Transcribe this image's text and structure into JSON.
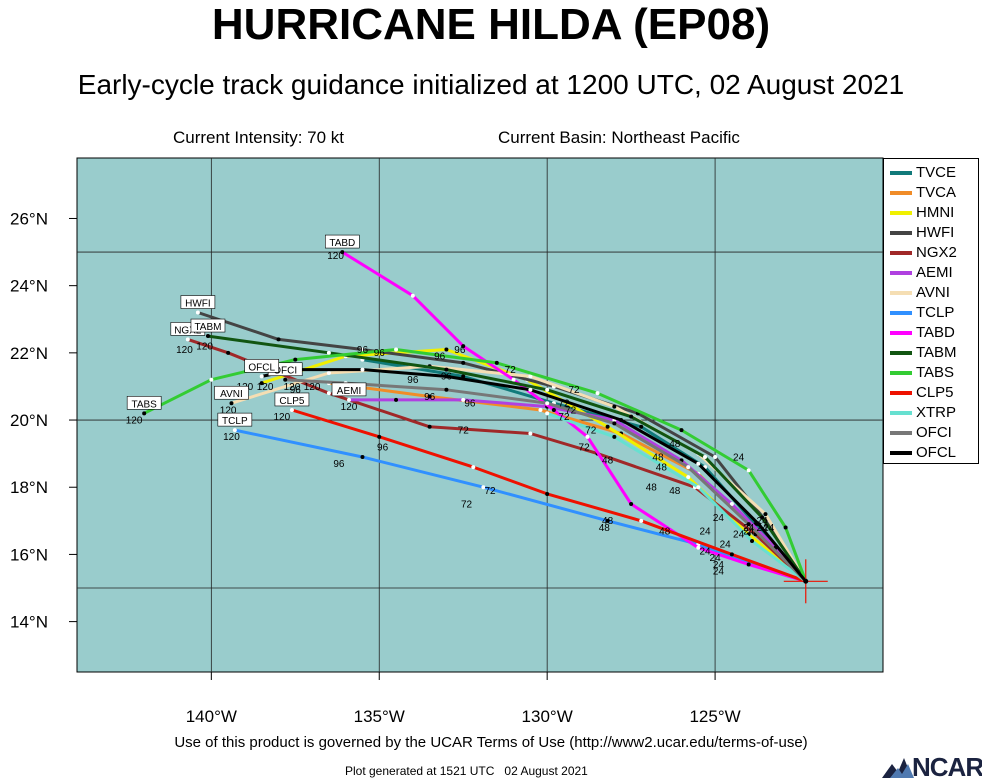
{
  "header": {
    "title": "HURRICANE HILDA (EP08)",
    "subtitle": "Early-cycle track guidance initialized at 1200 UTC, 02 August 2021",
    "intensity": "Current Intensity: 70 kt",
    "basin": "Current Basin: Northeast Pacific"
  },
  "footer": {
    "terms": "Use of this product is governed by the UCAR Terms of Use (http://www2.ucar.edu/terms-of-use)",
    "generated": "Plot generated at 1521 UTC   02 August 2021",
    "logo_text": "NCAR"
  },
  "map": {
    "ocean_color": "#99cccc",
    "grid_color": "#222222",
    "lon_range": [
      -144,
      -120
    ],
    "lat_range": [
      12.5,
      27.8
    ],
    "lon_ticks": [
      {
        "value": -140,
        "label": "140°W"
      },
      {
        "value": -135,
        "label": "135°W"
      },
      {
        "value": -130,
        "label": "130°W"
      },
      {
        "value": -125,
        "label": "125°W"
      }
    ],
    "lat_ticks": [
      {
        "value": 14,
        "label": "14°N"
      },
      {
        "value": 16,
        "label": "16°N"
      },
      {
        "value": 18,
        "label": "18°N"
      },
      {
        "value": 20,
        "label": "20°N"
      },
      {
        "value": 22,
        "label": "22°N"
      },
      {
        "value": 24,
        "label": "24°N"
      },
      {
        "value": 26,
        "label": "26°N"
      }
    ],
    "grid_lons": [
      -140,
      -135,
      -130,
      -125
    ],
    "grid_lats": [
      15,
      20,
      25
    ],
    "storm_position": {
      "lon": -122.3,
      "lat": 15.2
    }
  },
  "chart_data": {
    "type": "map",
    "series": [
      {
        "name": "TVCE",
        "color": "#117a7a",
        "points": [
          [
            -122.3,
            15.2
          ],
          [
            -123.8,
            16.9
          ],
          [
            -125.3,
            18.6
          ],
          [
            -127.2,
            19.8
          ],
          [
            -129.8,
            20.5
          ],
          [
            -132.5,
            21.3
          ],
          [
            -135.5,
            21.8
          ]
        ],
        "labels": []
      },
      {
        "name": "TVCA",
        "color": "#f08c28",
        "points": [
          [
            -122.3,
            15.2
          ],
          [
            -123.9,
            16.8
          ],
          [
            -125.5,
            18.4
          ],
          [
            -127.8,
            19.6
          ],
          [
            -130.2,
            20.3
          ],
          [
            -133.5,
            20.7
          ],
          [
            -136.5,
            21.1
          ]
        ],
        "labels": []
      },
      {
        "name": "HMNI",
        "color": "#f0f000",
        "points": [
          [
            -122.3,
            15.2
          ],
          [
            -124.0,
            16.6
          ],
          [
            -125.8,
            18.3
          ],
          [
            -128.2,
            19.8
          ],
          [
            -130.6,
            21.2
          ],
          [
            -133.0,
            22.1
          ],
          [
            -136.0,
            21.9
          ],
          [
            -138.5,
            21.1
          ]
        ],
        "labels": []
      },
      {
        "name": "HWFI",
        "color": "#444444",
        "points": [
          [
            -122.3,
            15.2
          ],
          [
            -123.5,
            17.0
          ],
          [
            -125.0,
            18.9
          ],
          [
            -127.3,
            20.2
          ],
          [
            -129.8,
            21.0
          ],
          [
            -132.5,
            21.7
          ],
          [
            -135.5,
            22.1
          ],
          [
            -138.0,
            22.4
          ],
          [
            -140.4,
            23.2
          ]
        ],
        "labels": [
          {
            "text": "HWFI",
            "boxed": true,
            "dx": 0,
            "dy": -10
          }
        ]
      },
      {
        "name": "NGX2",
        "color": "#a02828",
        "points": [
          [
            -122.3,
            15.2
          ],
          [
            -123.8,
            16.6
          ],
          [
            -125.6,
            18.0
          ],
          [
            -128.5,
            19.0
          ],
          [
            -130.5,
            19.6
          ],
          [
            -133.5,
            19.8
          ],
          [
            -136.5,
            20.8
          ],
          [
            -139.5,
            22.0
          ],
          [
            -140.7,
            22.4
          ]
        ],
        "labels": [
          {
            "text": "NGX2",
            "boxed": true,
            "dx": 0,
            "dy": -10
          }
        ]
      },
      {
        "name": "AEMI",
        "color": "#b040e0",
        "points": [
          [
            -122.3,
            15.2
          ],
          [
            -123.2,
            16.2
          ],
          [
            -124.5,
            17.5
          ],
          [
            -126.0,
            18.8
          ],
          [
            -128.0,
            20.0
          ],
          [
            -130.0,
            20.4
          ],
          [
            -132.5,
            20.6
          ],
          [
            -134.5,
            20.6
          ],
          [
            -135.9,
            20.6
          ]
        ],
        "labels": [
          {
            "text": "AEMI",
            "boxed": true,
            "dx": 0,
            "dy": -10
          }
        ]
      },
      {
        "name": "AVNI",
        "color": "#f5deb3",
        "points": [
          [
            -122.3,
            15.2
          ],
          [
            -123.5,
            17.2
          ],
          [
            -125.5,
            19.0
          ],
          [
            -128.0,
            20.4
          ],
          [
            -130.5,
            21.3
          ],
          [
            -133.5,
            21.6
          ],
          [
            -136.5,
            21.4
          ],
          [
            -139.4,
            20.5
          ]
        ],
        "labels": [
          {
            "text": "AVNI",
            "boxed": true,
            "dx": 0,
            "dy": -10
          }
        ]
      },
      {
        "name": "TCLP",
        "color": "#3090ff",
        "points": [
          [
            -122.3,
            15.2
          ],
          [
            -123.5,
            15.6
          ],
          [
            -125.5,
            16.3
          ],
          [
            -128.2,
            17.0
          ],
          [
            -131.9,
            18.0
          ],
          [
            -135.5,
            18.9
          ],
          [
            -139.3,
            19.7
          ]
        ],
        "labels": [
          {
            "text": "TCLP",
            "boxed": true,
            "dx": 0,
            "dy": -10
          }
        ]
      },
      {
        "name": "TABD",
        "color": "#ff00ff",
        "points": [
          [
            -122.3,
            15.2
          ],
          [
            -124.0,
            15.7
          ],
          [
            -125.5,
            16.2
          ],
          [
            -127.5,
            17.5
          ],
          [
            -128.8,
            19.5
          ],
          [
            -129.8,
            20.3
          ],
          [
            -131.0,
            21.2
          ],
          [
            -132.5,
            22.2
          ],
          [
            -134.0,
            23.7
          ],
          [
            -136.1,
            25.0
          ]
        ],
        "labels": [
          {
            "text": "TABD",
            "boxed": true,
            "dx": 0,
            "dy": -10
          }
        ]
      },
      {
        "name": "TABM",
        "color": "#115511",
        "points": [
          [
            -122.3,
            15.2
          ],
          [
            -123.6,
            17.1
          ],
          [
            -125.3,
            18.9
          ],
          [
            -127.5,
            20.1
          ],
          [
            -130.0,
            20.9
          ],
          [
            -133.0,
            21.5
          ],
          [
            -136.5,
            22.0
          ],
          [
            -140.1,
            22.5
          ]
        ],
        "labels": [
          {
            "text": "TABM",
            "boxed": true,
            "dx": 0,
            "dy": -10
          }
        ]
      },
      {
        "name": "TABS",
        "color": "#33cc33",
        "points": [
          [
            -122.3,
            15.2
          ],
          [
            -122.9,
            16.8
          ],
          [
            -124.0,
            18.5
          ],
          [
            -126.0,
            19.7
          ],
          [
            -128.5,
            20.8
          ],
          [
            -131.5,
            21.7
          ],
          [
            -134.5,
            22.1
          ],
          [
            -137.5,
            21.8
          ],
          [
            -140.0,
            21.2
          ],
          [
            -142.0,
            20.2
          ]
        ],
        "labels": [
          {
            "text": "TABS",
            "boxed": true,
            "dx": 0,
            "dy": -10
          }
        ]
      },
      {
        "name": "CLP5",
        "color": "#ee1100",
        "points": [
          [
            -122.3,
            15.2
          ],
          [
            -124.5,
            16.0
          ],
          [
            -127.2,
            17.0
          ],
          [
            -130.0,
            17.8
          ],
          [
            -132.2,
            18.6
          ],
          [
            -135.0,
            19.5
          ],
          [
            -137.6,
            20.3
          ]
        ],
        "labels": [
          {
            "text": "CLP5",
            "boxed": true,
            "dx": 0,
            "dy": -10
          }
        ]
      },
      {
        "name": "XTRP",
        "color": "#66e0d0",
        "points": [
          [
            -122.3,
            15.2
          ],
          [
            -123.9,
            16.4
          ],
          [
            -125.5,
            18.0
          ],
          [
            -128.0,
            19.5
          ],
          [
            -130.0,
            20.2
          ]
        ],
        "labels": []
      },
      {
        "name": "OFCI",
        "color": "#777777",
        "points": [
          [
            -122.3,
            15.2
          ],
          [
            -124.0,
            16.9
          ],
          [
            -125.8,
            18.6
          ],
          [
            -128.0,
            19.9
          ],
          [
            -130.0,
            20.5
          ],
          [
            -133.0,
            20.9
          ],
          [
            -136.0,
            21.1
          ],
          [
            -137.8,
            21.2
          ]
        ],
        "labels": [
          {
            "text": "OFCI",
            "boxed": true,
            "dx": 0,
            "dy": -10
          }
        ]
      },
      {
        "name": "OFCL",
        "color": "#000000",
        "points": [
          [
            -122.3,
            15.2
          ],
          [
            -123.7,
            16.9
          ],
          [
            -125.5,
            18.7
          ],
          [
            -127.8,
            20.0
          ],
          [
            -130.5,
            20.9
          ],
          [
            -133.0,
            21.3
          ],
          [
            -135.5,
            21.5
          ],
          [
            -137.5,
            21.5
          ],
          [
            -138.5,
            21.3
          ]
        ],
        "labels": [
          {
            "text": "OFCL",
            "boxed": true,
            "dx": 0,
            "dy": -10
          }
        ]
      }
    ],
    "hour_labels": [
      {
        "text": "120",
        "lon": -140.6,
        "lat": 22.6
      },
      {
        "text": "120",
        "lon": -140.8,
        "lat": 22.0
      },
      {
        "text": "120",
        "lon": -140.2,
        "lat": 22.1
      },
      {
        "text": "120",
        "lon": -142.3,
        "lat": 19.9
      },
      {
        "text": "120",
        "lon": -139.5,
        "lat": 20.2
      },
      {
        "text": "120",
        "lon": -139.4,
        "lat": 19.4
      },
      {
        "text": "120",
        "lon": -139.0,
        "lat": 20.9
      },
      {
        "text": "120",
        "lon": -138.4,
        "lat": 20.9
      },
      {
        "text": "120",
        "lon": -137.6,
        "lat": 20.9
      },
      {
        "text": "120",
        "lon": -137.0,
        "lat": 20.9
      },
      {
        "text": "120",
        "lon": -137.9,
        "lat": 20.0
      },
      {
        "text": "120",
        "lon": -135.9,
        "lat": 20.3
      },
      {
        "text": "120",
        "lon": -136.3,
        "lat": 24.8
      },
      {
        "text": "96",
        "lon": -137.5,
        "lat": 20.8
      },
      {
        "text": "96",
        "lon": -135.5,
        "lat": 22.0
      },
      {
        "text": "96",
        "lon": -135.0,
        "lat": 21.9
      },
      {
        "text": "96",
        "lon": -133.2,
        "lat": 21.8
      },
      {
        "text": "96",
        "lon": -132.6,
        "lat": 22.0
      },
      {
        "text": "96",
        "lon": -134.0,
        "lat": 21.1
      },
      {
        "text": "96",
        "lon": -133.0,
        "lat": 21.2
      },
      {
        "text": "96",
        "lon": -132.3,
        "lat": 20.4
      },
      {
        "text": "96",
        "lon": -133.5,
        "lat": 20.6
      },
      {
        "text": "96",
        "lon": -134.9,
        "lat": 19.1
      },
      {
        "text": "96",
        "lon": -136.2,
        "lat": 18.6
      },
      {
        "text": "72",
        "lon": -131.1,
        "lat": 21.4
      },
      {
        "text": "72",
        "lon": -132.5,
        "lat": 19.6
      },
      {
        "text": "72",
        "lon": -129.5,
        "lat": 20.4
      },
      {
        "text": "72",
        "lon": -129.2,
        "lat": 20.8
      },
      {
        "text": "72",
        "lon": -129.3,
        "lat": 20.2
      },
      {
        "text": "72",
        "lon": -128.7,
        "lat": 19.6
      },
      {
        "text": "72",
        "lon": -129.5,
        "lat": 20.0
      },
      {
        "text": "72",
        "lon": -128.9,
        "lat": 19.1
      },
      {
        "text": "72",
        "lon": -131.7,
        "lat": 17.8
      },
      {
        "text": "72",
        "lon": -132.4,
        "lat": 17.4
      },
      {
        "text": "48",
        "lon": -126.2,
        "lat": 19.2
      },
      {
        "text": "48",
        "lon": -126.6,
        "lat": 18.5
      },
      {
        "text": "48",
        "lon": -126.9,
        "lat": 17.9
      },
      {
        "text": "48",
        "lon": -126.2,
        "lat": 17.8
      },
      {
        "text": "48",
        "lon": -126.7,
        "lat": 18.8
      },
      {
        "text": "48",
        "lon": -128.2,
        "lat": 18.7
      },
      {
        "text": "48",
        "lon": -128.2,
        "lat": 16.9
      },
      {
        "text": "48",
        "lon": -128.3,
        "lat": 16.7
      },
      {
        "text": "48",
        "lon": -126.5,
        "lat": 16.6
      },
      {
        "text": "24",
        "lon": -124.9,
        "lat": 17.0
      },
      {
        "text": "24",
        "lon": -124.3,
        "lat": 16.5
      },
      {
        "text": "24",
        "lon": -124.0,
        "lat": 16.7
      },
      {
        "text": "24",
        "lon": -123.6,
        "lat": 16.7
      },
      {
        "text": "24",
        "lon": -123.6,
        "lat": 16.9
      },
      {
        "text": "24",
        "lon": -123.4,
        "lat": 16.7
      },
      {
        "text": "24",
        "lon": -124.7,
        "lat": 16.2
      },
      {
        "text": "24",
        "lon": -125.3,
        "lat": 16.0
      },
      {
        "text": "24",
        "lon": -125.0,
        "lat": 15.8
      },
      {
        "text": "24",
        "lon": -124.9,
        "lat": 15.6
      },
      {
        "text": "24",
        "lon": -124.9,
        "lat": 15.4
      },
      {
        "text": "24",
        "lon": -125.3,
        "lat": 16.6
      },
      {
        "text": "24",
        "lon": -124.3,
        "lat": 18.8
      },
      {
        "text": "24",
        "lon": -124.0,
        "lat": 16.6
      }
    ]
  }
}
